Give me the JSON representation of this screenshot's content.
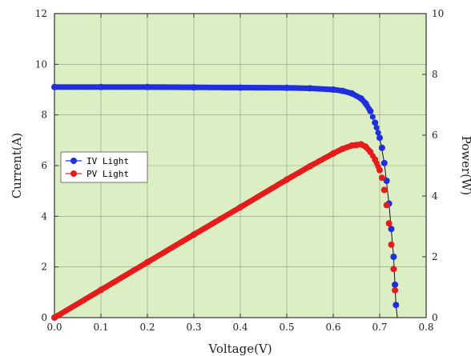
{
  "chart_data": {
    "type": "scatter",
    "title": "",
    "xlabel": "Voltage(V)",
    "ylabel": "Current(A)",
    "y2label": "Power(W)",
    "xlim": [
      0.0,
      0.8
    ],
    "ylim": [
      0,
      12
    ],
    "y2lim": [
      0,
      10
    ],
    "x_ticks": [
      "0.0",
      "0.1",
      "0.2",
      "0.3",
      "0.4",
      "0.5",
      "0.6",
      "0.7",
      "0.8"
    ],
    "y_ticks": [
      "0",
      "2",
      "4",
      "6",
      "8",
      "10",
      "12"
    ],
    "y2_ticks": [
      "0",
      "2",
      "4",
      "6",
      "8",
      "10"
    ],
    "grid": true,
    "background_color": "#dcefc4",
    "grid_color": "#8c9a80",
    "legend_placement": "left-middle",
    "series": [
      {
        "name": "IV Light",
        "axis": "left",
        "color": "#1f2fe0",
        "x": [
          0.0,
          0.1,
          0.2,
          0.3,
          0.4,
          0.5,
          0.55,
          0.6,
          0.62,
          0.64,
          0.66,
          0.67,
          0.68,
          0.69,
          0.7,
          0.705,
          0.71,
          0.715,
          0.72,
          0.725,
          0.73,
          0.733,
          0.735
        ],
        "y": [
          9.1,
          9.1,
          9.1,
          9.09,
          9.08,
          9.07,
          9.05,
          9.0,
          8.95,
          8.85,
          8.65,
          8.45,
          8.15,
          7.7,
          7.1,
          6.7,
          6.1,
          5.4,
          4.5,
          3.5,
          2.4,
          1.3,
          0.5
        ]
      },
      {
        "name": "PV Light",
        "axis": "right",
        "color": "#e61b1b",
        "x": [
          0.0,
          0.1,
          0.2,
          0.3,
          0.4,
          0.5,
          0.55,
          0.6,
          0.62,
          0.64,
          0.65,
          0.66,
          0.67,
          0.68,
          0.69,
          0.7,
          0.705,
          0.71,
          0.715,
          0.72,
          0.725,
          0.73,
          0.733
        ],
        "y": [
          0.0,
          0.91,
          1.82,
          2.73,
          3.63,
          4.54,
          4.98,
          5.4,
          5.55,
          5.66,
          5.68,
          5.7,
          5.62,
          5.45,
          5.2,
          4.85,
          4.6,
          4.2,
          3.7,
          3.1,
          2.4,
          1.6,
          0.9
        ]
      }
    ],
    "fit_line": {
      "color": "#111111",
      "x": [
        0.69,
        0.7,
        0.71,
        0.72,
        0.73,
        0.735,
        0.738
      ],
      "y": [
        7.7,
        7.1,
        6.1,
        4.5,
        2.4,
        0.5,
        0.0
      ]
    }
  }
}
